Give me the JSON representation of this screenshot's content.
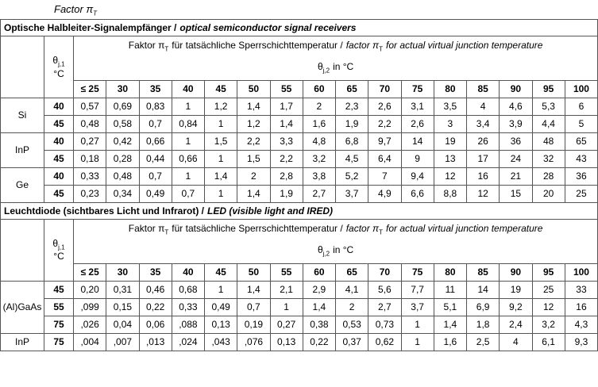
{
  "title": {
    "text": "Factor π",
    "sub": "T"
  },
  "sections": [
    {
      "heading": {
        "de": "Optische Halbleiter-Signalempfänger /",
        "en": "optical semiconductor signal receivers"
      },
      "header": {
        "theta1": {
          "symbol": "θ",
          "sub": "j,1",
          "unit": "°C"
        },
        "desc": {
          "de_pre": "Faktor π",
          "de_sub": "T",
          "de_post": "für tatsächliche Sperrschichttemperatur /",
          "en_pre": "factor π",
          "en_sub": "T",
          "en_post": "for actual virtual junction temperature"
        },
        "theta2": {
          "symbol": "θ",
          "sub": "j,2",
          "unit": "in °C"
        },
        "columns": [
          "≤ 25",
          "30",
          "35",
          "40",
          "45",
          "50",
          "55",
          "60",
          "65",
          "70",
          "75",
          "80",
          "85",
          "90",
          "95",
          "100"
        ]
      },
      "groups": [
        {
          "material": "Si",
          "rows": [
            {
              "theta": "40",
              "values": [
                "0,57",
                "0,69",
                "0,83",
                "1",
                "1,2",
                "1,4",
                "1,7",
                "2",
                "2,3",
                "2,6",
                "3,1",
                "3,5",
                "4",
                "4,6",
                "5,3",
                "6"
              ]
            },
            {
              "theta": "45",
              "values": [
                "0,48",
                "0,58",
                "0,7",
                "0,84",
                "1",
                "1,2",
                "1,4",
                "1,6",
                "1,9",
                "2,2",
                "2,6",
                "3",
                "3,4",
                "3,9",
                "4,4",
                "5"
              ]
            }
          ]
        },
        {
          "material": "InP",
          "rows": [
            {
              "theta": "40",
              "values": [
                "0,27",
                "0,42",
                "0,66",
                "1",
                "1,5",
                "2,2",
                "3,3",
                "4,8",
                "6,8",
                "9,7",
                "14",
                "19",
                "26",
                "36",
                "48",
                "65"
              ]
            },
            {
              "theta": "45",
              "values": [
                "0,18",
                "0,28",
                "0,44",
                "0,66",
                "1",
                "1,5",
                "2,2",
                "3,2",
                "4,5",
                "6,4",
                "9",
                "13",
                "17",
                "24",
                "32",
                "43"
              ]
            }
          ]
        },
        {
          "material": "Ge",
          "rows": [
            {
              "theta": "40",
              "values": [
                "0,33",
                "0,48",
                "0,7",
                "1",
                "1,4",
                "2",
                "2,8",
                "3,8",
                "5,2",
                "7",
                "9,4",
                "12",
                "16",
                "21",
                "28",
                "36"
              ]
            },
            {
              "theta": "45",
              "values": [
                "0,23",
                "0,34",
                "0,49",
                "0,7",
                "1",
                "1,4",
                "1,9",
                "2,7",
                "3,7",
                "4,9",
                "6,6",
                "8,8",
                "12",
                "15",
                "20",
                "25"
              ]
            }
          ]
        }
      ]
    },
    {
      "heading": {
        "de": "Leuchtdiode (sichtbares Licht und Infrarot) /",
        "en": "LED (visible light and IRED)"
      },
      "header": {
        "theta1": {
          "symbol": "θ",
          "sub": "j,1",
          "unit": "°C"
        },
        "desc": {
          "de_pre": "Faktor π",
          "de_sub": "T",
          "de_post": "für tatsächliche Sperrschichttemperatur /",
          "en_pre": "factor π",
          "en_sub": "T",
          "en_post": "for actual virtual junction temperature"
        },
        "theta2": {
          "symbol": "θ",
          "sub": "j,2",
          "unit": "in °C"
        },
        "columns": [
          "≤ 25",
          "30",
          "35",
          "40",
          "45",
          "50",
          "55",
          "60",
          "65",
          "70",
          "75",
          "80",
          "85",
          "90",
          "95",
          "100"
        ]
      },
      "groups": [
        {
          "material": "(Al)GaAs",
          "rows": [
            {
              "theta": "45",
              "values": [
                "0,20",
                "0,31",
                "0,46",
                "0,68",
                "1",
                "1,4",
                "2,1",
                "2,9",
                "4,1",
                "5,6",
                "7,7",
                "11",
                "14",
                "19",
                "25",
                "33"
              ]
            },
            {
              "theta": "55",
              "values": [
                ",099",
                "0,15",
                "0,22",
                "0,33",
                "0,49",
                "0,7",
                "1",
                "1,4",
                "2",
                "2,7",
                "3,7",
                "5,1",
                "6,9",
                "9,2",
                "12",
                "16"
              ]
            },
            {
              "theta": "75",
              "values": [
                ",026",
                "0,04",
                "0,06",
                ",088",
                "0,13",
                "0,19",
                "0,27",
                "0,38",
                "0,53",
                "0,73",
                "1",
                "1,4",
                "1,8",
                "2,4",
                "3,2",
                "4,3"
              ]
            }
          ]
        },
        {
          "material": "InP",
          "rows": [
            {
              "theta": "75",
              "values": [
                ",004",
                ",007",
                ",013",
                ",024",
                ",043",
                ",076",
                "0,13",
                "0,22",
                "0,37",
                "0,62",
                "1",
                "1,6",
                "2,5",
                "4",
                "6,1",
                "9,3"
              ]
            }
          ]
        }
      ]
    }
  ]
}
